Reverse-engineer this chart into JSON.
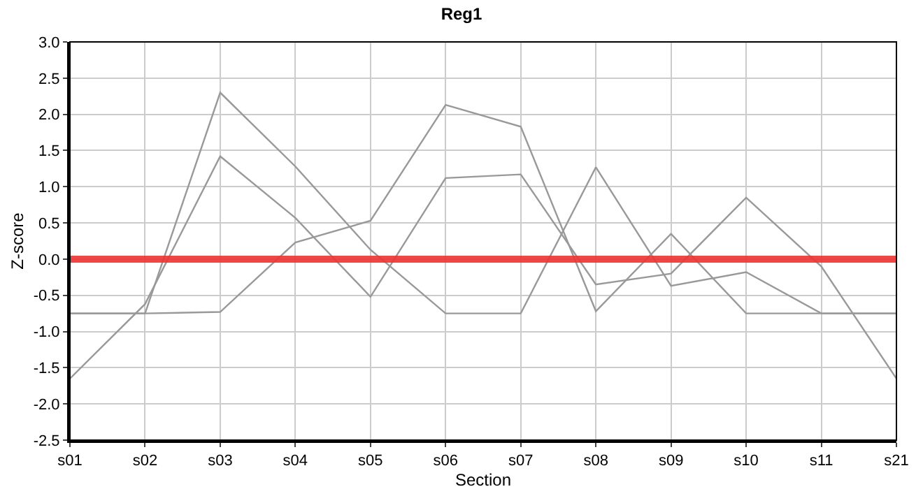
{
  "chart_data": {
    "type": "line",
    "title": "Reg1",
    "xlabel": "Section",
    "ylabel": "Z-score",
    "categories": [
      "s01",
      "s02",
      "s03",
      "s04",
      "s05",
      "s06",
      "s07",
      "s08",
      "s09",
      "s10",
      "s11",
      "s21"
    ],
    "series": [
      {
        "color": "#999999",
        "values": [
          -0.75,
          -0.75,
          2.3,
          1.28,
          0.13,
          -0.75,
          -0.75,
          1.27,
          -0.37,
          -0.18,
          -0.75,
          -0.75
        ]
      },
      {
        "color": "#999999",
        "values": [
          -1.65,
          -0.62,
          1.42,
          0.57,
          -0.52,
          1.12,
          1.17,
          -0.35,
          -0.2,
          0.85,
          -0.1,
          -1.65
        ]
      },
      {
        "color": "#999999",
        "values": [
          -0.75,
          -0.75,
          -0.73,
          0.23,
          0.53,
          2.13,
          1.83,
          -0.72,
          0.35,
          -0.75,
          -0.75,
          -0.75
        ]
      }
    ],
    "ylim": [
      -2.5,
      3.0
    ],
    "yticks": [
      {
        "value": -2.5,
        "label": "-2.5"
      },
      {
        "value": -2,
        "label": "-2.0"
      },
      {
        "value": -1.5,
        "label": "-1.5"
      },
      {
        "value": -1,
        "label": "-1.0"
      },
      {
        "value": -0.5,
        "label": "-0.5"
      },
      {
        "value": 0,
        "label": "0.0"
      },
      {
        "value": 0.5,
        "label": "0.5"
      },
      {
        "value": 1,
        "label": "1.0"
      },
      {
        "value": 1.5,
        "label": "1.5"
      },
      {
        "value": 2,
        "label": "2.0"
      },
      {
        "value": 2.5,
        "label": "2.5"
      },
      {
        "value": 3,
        "label": "3.0"
      }
    ],
    "ref_lines": [
      {
        "axis": "y",
        "value": 0,
        "color": "#ee3333"
      }
    ],
    "grid": true,
    "marker": "none",
    "line_style": "solid"
  }
}
